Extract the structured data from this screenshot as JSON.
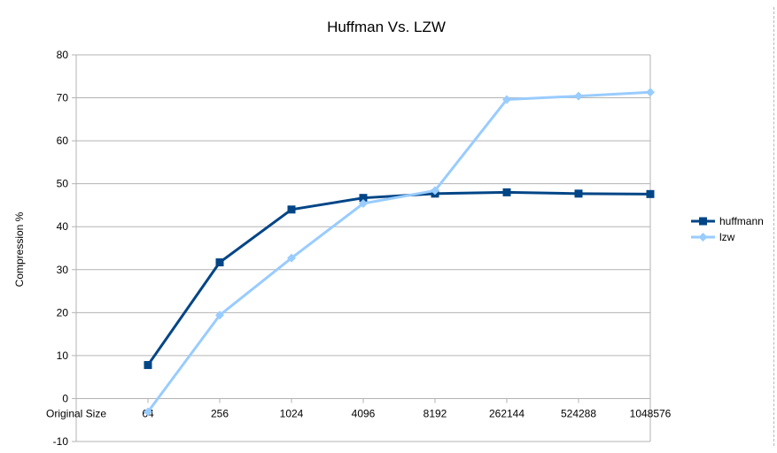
{
  "chart_data": {
    "type": "line",
    "title": "Huffman Vs. LZW",
    "xlabel": "",
    "ylabel": "Compression %",
    "categories": [
      "Original Size",
      "64",
      "256",
      "1024",
      "4096",
      "8192",
      "262144",
      "524288",
      "1048576"
    ],
    "ylim": [
      -10,
      80
    ],
    "yticks": [
      -10,
      0,
      10,
      20,
      30,
      40,
      50,
      60,
      70,
      80
    ],
    "grid": true,
    "legend_position": "right",
    "series": [
      {
        "name": "huffmann",
        "color": "#004586",
        "marker": "square",
        "values": [
          null,
          7.8,
          31.7,
          44.0,
          46.7,
          47.7,
          48.0,
          47.7,
          47.6
        ]
      },
      {
        "name": "lzw",
        "color": "#99ccff",
        "marker": "diamond",
        "values": [
          null,
          -3.1,
          19.4,
          32.7,
          45.4,
          48.4,
          69.6,
          70.4,
          71.3
        ]
      }
    ]
  }
}
